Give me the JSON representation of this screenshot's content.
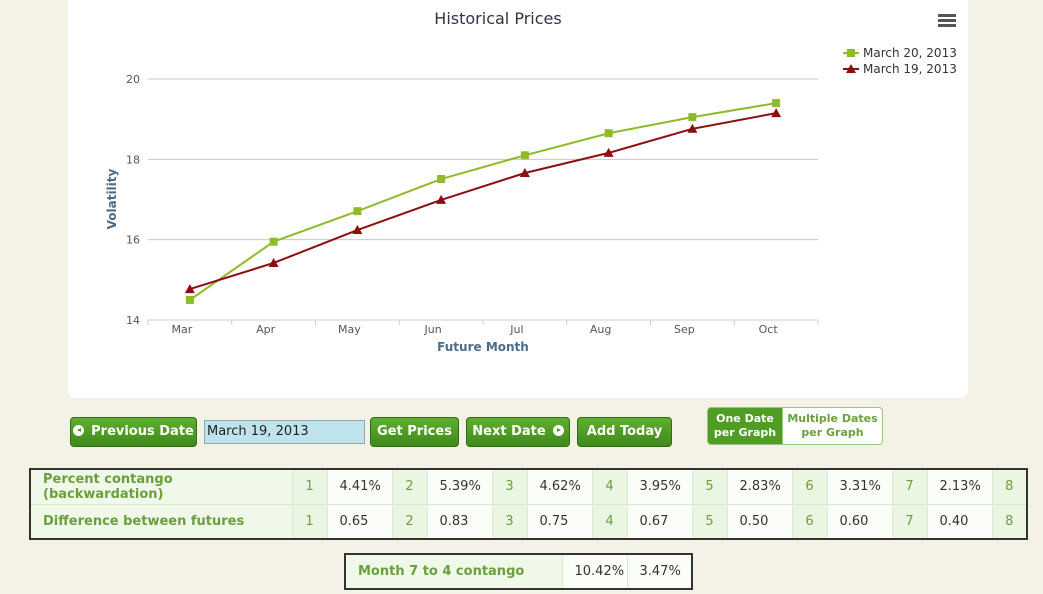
{
  "chart_data": {
    "type": "line",
    "title": "Historical Prices",
    "xlabel": "Future Month",
    "ylabel": "Volatility",
    "categories": [
      "Mar",
      "Apr",
      "May",
      "Jun",
      "Jul",
      "Aug",
      "Sep",
      "Oct"
    ],
    "series": [
      {
        "name": "March 20, 2013",
        "color": "#8fba2a",
        "marker": "square",
        "values": [
          14.5,
          15.95,
          16.71,
          17.51,
          18.1,
          18.65,
          19.05,
          19.4
        ]
      },
      {
        "name": "March 19, 2013",
        "color": "#8b0f0f",
        "marker": "triangle",
        "values": [
          14.77,
          15.42,
          16.24,
          16.99,
          17.66,
          18.16,
          18.76,
          19.15
        ]
      }
    ],
    "ylim": [
      14,
      20
    ],
    "yticks": [
      14,
      16,
      18,
      20
    ],
    "grid": true,
    "legend": "top-right"
  },
  "controls": {
    "previous": "Previous Date",
    "date_input": "March 19, 2013",
    "get_prices": "Get Prices",
    "next": "Next Date",
    "add_today": "Add Today",
    "toggle": [
      "One Date\nper Graph",
      "Multiple Dates\nper Graph"
    ]
  },
  "table": {
    "rows": [
      {
        "label": "Percent contango (backwardation)",
        "cells": [
          [
            "1",
            "4.41%"
          ],
          [
            "2",
            "5.39%"
          ],
          [
            "3",
            "4.62%"
          ],
          [
            "4",
            "3.95%"
          ],
          [
            "5",
            "2.83%"
          ],
          [
            "6",
            "3.31%"
          ],
          [
            "7",
            "2.13%"
          ],
          [
            "8"
          ]
        ]
      },
      {
        "label": "Difference between futures",
        "cells": [
          [
            "1",
            "0.65"
          ],
          [
            "2",
            "0.83"
          ],
          [
            "3",
            "0.75"
          ],
          [
            "4",
            "0.67"
          ],
          [
            "5",
            "0.50"
          ],
          [
            "6",
            "0.60"
          ],
          [
            "7",
            "0.40"
          ],
          [
            "8"
          ]
        ]
      }
    ]
  },
  "summary": {
    "label": "Month 7 to 4 contango",
    "values": [
      "10.42%",
      "3.47%"
    ]
  }
}
